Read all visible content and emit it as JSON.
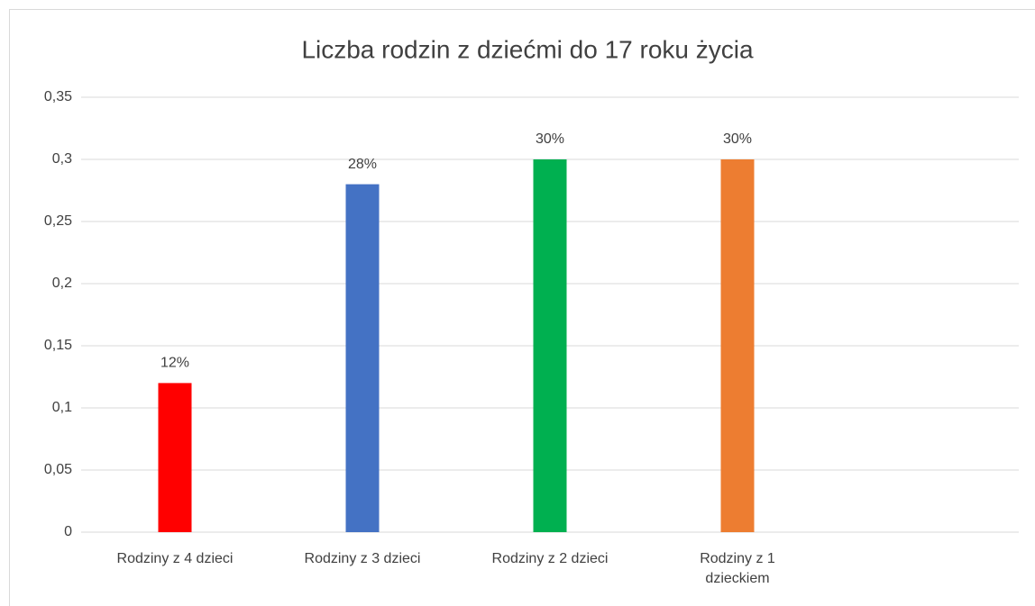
{
  "chart_data": {
    "type": "bar",
    "title": "Liczba rodzin z dziećmi do 17 roku życia",
    "categories": [
      "Rodziny z 4 dzieci",
      "Rodziny z 3 dzieci",
      "Rodziny z 2 dzieci",
      "Rodziny z 1 dzieckiem",
      null
    ],
    "values": [
      0.12,
      0.28,
      0.3,
      0.3,
      null
    ],
    "value_labels": [
      "12%",
      "28%",
      "30%",
      "30%",
      null
    ],
    "colors": [
      "#ff0000",
      "#4472c4",
      "#00b050",
      "#ed7d31",
      null
    ],
    "ylim": [
      0,
      0.35
    ],
    "yticks": [
      0,
      {
        "value": 0.05,
        "label": "0,05"
      },
      {
        "value": 0.1,
        "label": "0,1"
      },
      {
        "value": 0.15,
        "label": "0,15"
      },
      {
        "value": 0.2,
        "label": "0,2"
      },
      {
        "value": 0.25,
        "label": "0,25"
      },
      {
        "value": 0.3,
        "label": "0,3"
      },
      {
        "value": 0.35,
        "label": "0,35"
      }
    ],
    "grid": true
  }
}
